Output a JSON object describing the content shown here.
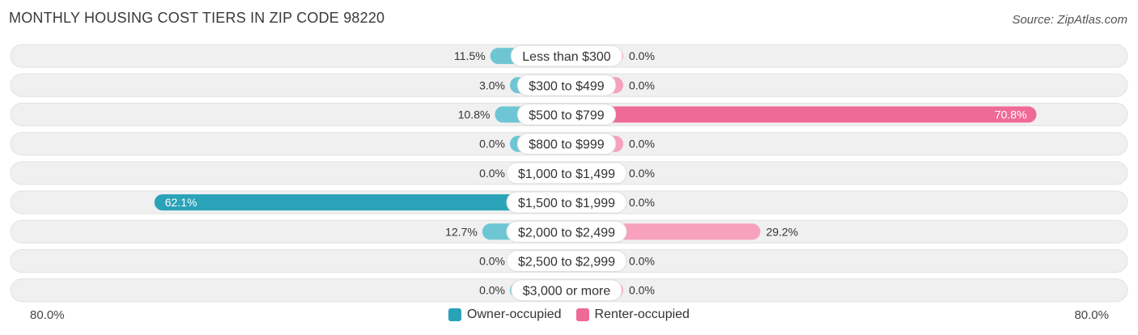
{
  "title": "MONTHLY HOUSING COST TIERS IN ZIP CODE 98220",
  "source": "Source: ZipAtlas.com",
  "axis": {
    "left_label": "80.0%",
    "right_label": "80.0%"
  },
  "legend": {
    "owner_label": "Owner-occupied",
    "renter_label": "Renter-occupied"
  },
  "colors": {
    "owner": "#6ec6d4",
    "owner_strong": "#2aa3b8",
    "renter": "#f7a1bd",
    "renter_strong": "#f06a97",
    "row_bg": "#f0f0f0"
  },
  "chart_data": {
    "type": "bar",
    "orientation": "horizontal-diverging",
    "xlim": [
      -80,
      80
    ],
    "categories": [
      "Less than $300",
      "$300 to $499",
      "$500 to $799",
      "$800 to $999",
      "$1,000 to $1,499",
      "$1,500 to $1,999",
      "$2,000 to $2,499",
      "$2,500 to $2,999",
      "$3,000 or more"
    ],
    "series": [
      {
        "name": "Owner-occupied",
        "values": [
          11.5,
          3.0,
          10.8,
          0.0,
          0.0,
          62.1,
          12.7,
          0.0,
          0.0
        ],
        "labels": [
          "11.5%",
          "3.0%",
          "10.8%",
          "0.0%",
          "0.0%",
          "62.1%",
          "12.7%",
          "0.0%",
          "0.0%"
        ]
      },
      {
        "name": "Renter-occupied",
        "values": [
          0.0,
          0.0,
          70.8,
          0.0,
          0.0,
          0.0,
          29.2,
          0.0,
          0.0
        ],
        "labels": [
          "0.0%",
          "0.0%",
          "70.8%",
          "0.0%",
          "0.0%",
          "0.0%",
          "29.2%",
          "0.0%",
          "0.0%"
        ]
      }
    ]
  }
}
